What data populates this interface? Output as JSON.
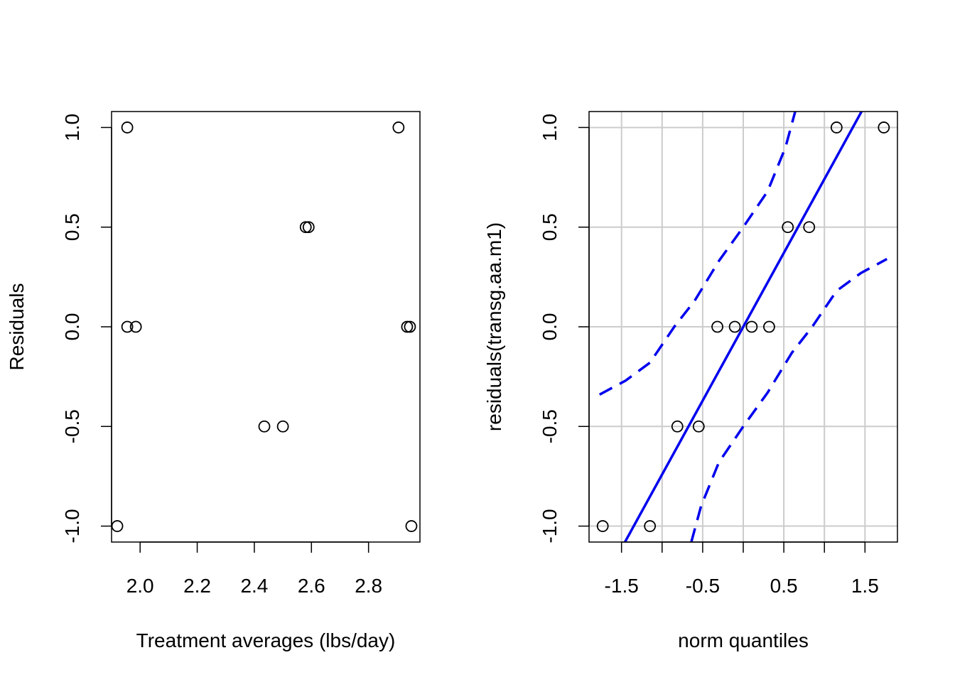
{
  "chart_data": [
    {
      "type": "scatter",
      "xlabel": "Treatment averages (lbs/day)",
      "ylabel": "Residuals",
      "xlim": [
        1.9,
        2.98
      ],
      "ylim": [
        -1.08,
        1.08
      ],
      "x_ticks": [
        2.0,
        2.2,
        2.4,
        2.6,
        2.8
      ],
      "x_tick_labels": [
        "2.0",
        "2.2",
        "2.4",
        "2.6",
        "2.8"
      ],
      "y_ticks": [
        -1.0,
        -0.5,
        0.0,
        0.5,
        1.0
      ],
      "y_tick_labels": [
        "-1.0",
        "-0.5",
        "0.0",
        "0.5",
        "1.0"
      ],
      "grid": false,
      "points": [
        {
          "x": 1.92,
          "y": -1.0
        },
        {
          "x": 1.955,
          "y": 1.0
        },
        {
          "x": 1.955,
          "y": 0.0
        },
        {
          "x": 1.985,
          "y": 0.0
        },
        {
          "x": 2.435,
          "y": -0.5
        },
        {
          "x": 2.5,
          "y": -0.5
        },
        {
          "x": 2.58,
          "y": 0.5
        },
        {
          "x": 2.59,
          "y": 0.5
        },
        {
          "x": 2.905,
          "y": 1.0
        },
        {
          "x": 2.935,
          "y": 0.0
        },
        {
          "x": 2.945,
          "y": 0.0
        },
        {
          "x": 2.95,
          "y": -1.0
        }
      ]
    },
    {
      "type": "scatter",
      "xlabel": "norm quantiles",
      "ylabel": "residuals(transg.aa.m1)",
      "xlim": [
        -1.9,
        1.9
      ],
      "ylim": [
        -1.08,
        1.08
      ],
      "x_ticks": [
        -1.5,
        -1.0,
        -0.5,
        0.0,
        0.5,
        1.0,
        1.5
      ],
      "x_tick_labels": [
        "-1.5",
        "",
        "-0.5",
        "",
        "0.5",
        "",
        "1.5"
      ],
      "y_ticks": [
        -1.0,
        -0.5,
        0.0,
        0.5,
        1.0
      ],
      "y_tick_labels": [
        "-1.0",
        "-0.5",
        "0.0",
        "0.5",
        "1.0"
      ],
      "grid": true,
      "grid_color": "#cccccc",
      "line_color": "#0000ee",
      "points": [
        {
          "x": -1.732,
          "y": -1.0
        },
        {
          "x": -1.15,
          "y": -1.0
        },
        {
          "x": -0.812,
          "y": -0.5
        },
        {
          "x": -0.549,
          "y": -0.5
        },
        {
          "x": -0.319,
          "y": 0.0
        },
        {
          "x": -0.104,
          "y": 0.0
        },
        {
          "x": 0.104,
          "y": 0.0
        },
        {
          "x": 0.319,
          "y": 0.0
        },
        {
          "x": 0.549,
          "y": 0.5
        },
        {
          "x": 0.812,
          "y": 0.5
        },
        {
          "x": 1.15,
          "y": 1.0
        },
        {
          "x": 1.732,
          "y": 1.0
        }
      ],
      "reference_line": {
        "intercept": 0.0,
        "slope": 0.741
      },
      "envelope_lower": [
        {
          "x": -0.64,
          "y": -1.08
        },
        {
          "x": -0.52,
          "y": -0.9
        },
        {
          "x": -0.3,
          "y": -0.68
        },
        {
          "x": 0.0,
          "y": -0.5
        },
        {
          "x": 0.3,
          "y": -0.33
        },
        {
          "x": 0.6,
          "y": -0.13
        },
        {
          "x": 0.85,
          "y": 0.0
        },
        {
          "x": 1.15,
          "y": 0.18
        },
        {
          "x": 1.45,
          "y": 0.27
        },
        {
          "x": 1.77,
          "y": 0.34
        }
      ],
      "envelope_upper": [
        {
          "x": -1.77,
          "y": -0.34
        },
        {
          "x": -1.45,
          "y": -0.27
        },
        {
          "x": -1.15,
          "y": -0.18
        },
        {
          "x": -0.85,
          "y": 0.0
        },
        {
          "x": -0.6,
          "y": 0.13
        },
        {
          "x": -0.3,
          "y": 0.33
        },
        {
          "x": 0.0,
          "y": 0.5
        },
        {
          "x": 0.3,
          "y": 0.68
        },
        {
          "x": 0.52,
          "y": 0.9
        },
        {
          "x": 0.64,
          "y": 1.08
        }
      ]
    }
  ]
}
